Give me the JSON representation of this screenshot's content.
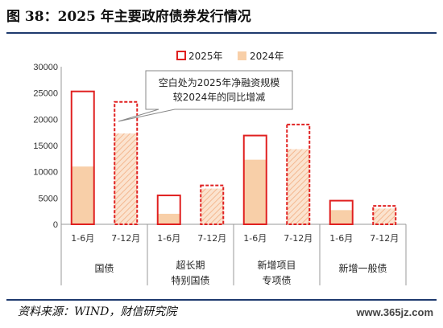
{
  "header": {
    "title": "图 38：2025 年主要政府债券发行情况"
  },
  "footer": {
    "source": "资料来源：WIND，财信研究院",
    "watermark": "www.365jz.com"
  },
  "chart_data": {
    "type": "bar",
    "yticks": [
      "0",
      "5000",
      "10000",
      "15000",
      "20000",
      "25000",
      "30000"
    ],
    "ylim": [
      0,
      30000
    ],
    "groups": [
      {
        "name_lines": [
          "国债"
        ]
      },
      {
        "name_lines": [
          "超长期",
          "特别国债"
        ]
      },
      {
        "name_lines": [
          "新增项目",
          "专项债"
        ]
      },
      {
        "name_lines": [
          "新增一般债"
        ]
      }
    ],
    "categories": [
      "1-6月",
      "7-12月",
      "1-6月",
      "7-12月",
      "1-6月",
      "7-12月",
      "1-6月",
      "7-12月"
    ],
    "series": [
      {
        "name": "2025年",
        "values": [
          25300,
          23300,
          5500,
          7400,
          16900,
          19000,
          4500,
          3500
        ]
      },
      {
        "name": "2024年",
        "values": [
          11000,
          17300,
          2000,
          6800,
          12300,
          14300,
          2700,
          3000
        ]
      }
    ],
    "annotation": {
      "lines": [
        "空白处为2025年净融资规模",
        "较2024年的同比增减"
      ]
    },
    "colors": {
      "frame_2025": "#e02020",
      "fill_2024": "#f8cfa8",
      "hatch_2024": "#f4b890"
    },
    "legend_position": "top-right",
    "grid": false
  }
}
